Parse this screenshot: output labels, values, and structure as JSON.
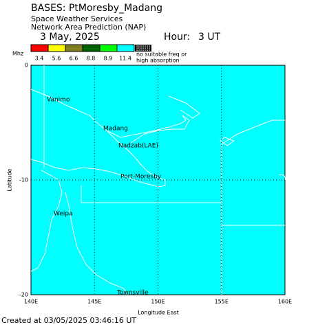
{
  "header": {
    "title": "BASES: PtMoresby_Madang",
    "line1": "Space Weather Services",
    "line2": "Network Area Prediction (NAP)",
    "date": "3 May, 2025",
    "hour_label": "Hour:",
    "hour": "3 UT"
  },
  "legend": {
    "unit": "Mhz",
    "colors": [
      "#ff0000",
      "#ffff00",
      "#808020",
      "#006400",
      "#00ff00",
      "#00ffff"
    ],
    "values": [
      3.4,
      5.6,
      6.6,
      8.8,
      8.9,
      11.4
    ],
    "no_freq_1": "no suitable freq or",
    "no_freq_2": "high absorption"
  },
  "axes": {
    "x_label": "Longitude East",
    "y_label": "Latitude",
    "xticks": [
      "140E",
      "145E",
      "150E",
      "155E",
      "160E"
    ],
    "yticks": [
      0,
      -10,
      -20
    ]
  },
  "places": [
    "Vanimo",
    "Madang",
    "Nadzab(LAE)",
    "Port-Moresby",
    "Weipa",
    "Townsville"
  ],
  "footer": "Created at 03/05/2025 03:46:16 UT"
}
